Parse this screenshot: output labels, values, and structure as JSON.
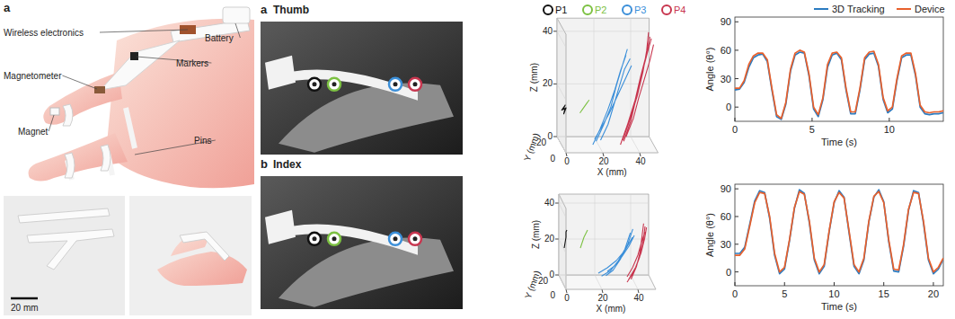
{
  "illustration": {
    "panel_label": "a",
    "labels": [
      "Wireless electronics",
      "Battery",
      "Markers",
      "Magnetometer",
      "Magnet",
      "Pins"
    ],
    "scale_bar": "20 mm"
  },
  "photos": [
    {
      "panel_label": "a",
      "title": "Thumb"
    },
    {
      "panel_label": "b",
      "title": "Index"
    }
  ],
  "chart_data": [
    {
      "type": "line3d",
      "xlabel": "X (mm)",
      "ylabel": "Y (mm)",
      "zlabel": "Z (mm)",
      "xlim": [
        0,
        50
      ],
      "xticks": [
        0,
        20,
        40
      ],
      "ylim": [
        0,
        20
      ],
      "yticks": [
        0,
        20
      ],
      "zlim": [
        0,
        45
      ],
      "zticks": [
        0,
        20,
        40
      ],
      "legend": "top",
      "marker": "circle",
      "series": [
        {
          "name": "P1",
          "color": "#111111",
          "x": [
            0,
            2,
            1,
            2.5,
            1,
            2
          ],
          "y": [
            10,
            10,
            11,
            10,
            9,
            10
          ],
          "z": [
            13,
            15,
            13,
            14,
            12,
            14
          ]
        },
        {
          "name": "P2",
          "color": "#7cc142",
          "x": [
            10,
            13,
            11,
            14,
            12,
            15
          ],
          "y": [
            10,
            10,
            10,
            10,
            10,
            10
          ],
          "z": [
            12,
            15,
            13,
            16,
            14,
            17
          ]
        },
        {
          "name": "P3",
          "color": "#3b8fd9",
          "x": [
            17,
            21,
            25,
            29,
            32,
            35,
            null,
            19,
            23,
            27,
            30,
            33,
            36,
            null,
            21,
            25,
            28,
            31,
            34,
            37,
            null,
            18,
            22,
            26,
            30,
            34,
            38
          ],
          "y": [
            10,
            10,
            10,
            10,
            10,
            10,
            null,
            11,
            11,
            11,
            11,
            11,
            11,
            null,
            9,
            9,
            9,
            9,
            9,
            9,
            null,
            10,
            10,
            10,
            10,
            10,
            10
          ],
          "z": [
            0,
            6,
            13,
            21,
            28,
            34,
            null,
            1,
            7,
            14,
            22,
            29,
            36,
            null,
            2,
            8,
            15,
            22,
            29,
            33,
            null,
            2,
            7,
            12,
            18,
            24,
            30
          ]
        },
        {
          "name": "P4",
          "color": "#c8364f",
          "x": [
            32,
            36,
            40,
            43,
            46,
            48,
            null,
            34,
            38,
            41,
            44,
            47,
            49,
            null,
            33,
            37,
            41,
            44,
            46,
            47,
            null,
            35,
            39,
            42,
            45,
            48,
            50
          ],
          "y": [
            10,
            10,
            10,
            10,
            10,
            10,
            null,
            11,
            11,
            11,
            11,
            11,
            11,
            null,
            9,
            9,
            9,
            9,
            9,
            9,
            null,
            10,
            10,
            10,
            10,
            10,
            10
          ],
          "z": [
            0,
            8,
            17,
            26,
            34,
            41,
            null,
            1,
            9,
            18,
            27,
            35,
            40,
            null,
            2,
            10,
            19,
            28,
            36,
            43,
            null,
            3,
            10,
            18,
            25,
            32,
            38
          ]
        }
      ]
    },
    {
      "type": "line",
      "xlabel": "Time (s)",
      "ylabel": "Angle (θ°)",
      "xlim": [
        0,
        13.5
      ],
      "xticks": [
        0,
        5,
        10
      ],
      "ylim": [
        -15,
        95
      ],
      "yticks": [
        0,
        30,
        60,
        90
      ],
      "legend": "top",
      "x": [
        0,
        0.3,
        0.6,
        0.9,
        1.2,
        1.5,
        1.8,
        2.1,
        2.4,
        2.7,
        3,
        3.3,
        3.6,
        3.9,
        4.2,
        4.5,
        4.8,
        5.1,
        5.4,
        5.7,
        6,
        6.3,
        6.6,
        6.9,
        7.2,
        7.5,
        7.8,
        8.1,
        8.4,
        8.7,
        9,
        9.3,
        9.6,
        9.9,
        10.2,
        10.5,
        10.8,
        11.1,
        11.4,
        11.7,
        12,
        12.3,
        12.6,
        12.9,
        13.2,
        13.5
      ],
      "series": [
        {
          "name": "3D Tracking",
          "color": "#2b7bc0",
          "values": [
            18,
            19,
            26,
            42,
            52,
            55,
            56,
            48,
            18,
            -10,
            -13,
            3,
            38,
            55,
            58,
            57,
            33,
            -2,
            -10,
            8,
            42,
            55,
            57,
            50,
            18,
            -7,
            -7,
            18,
            50,
            56,
            57,
            43,
            8,
            -6,
            -2,
            28,
            52,
            55,
            55,
            33,
            0,
            -7,
            -8,
            -7,
            -7,
            -6
          ]
        },
        {
          "name": "Device",
          "color": "#e8602c",
          "values": [
            20,
            20,
            28,
            45,
            54,
            57,
            57,
            50,
            20,
            -8,
            -12,
            5,
            40,
            57,
            60,
            58,
            35,
            0,
            -8,
            10,
            45,
            57,
            58,
            52,
            20,
            -5,
            -5,
            20,
            52,
            58,
            59,
            45,
            10,
            -4,
            0,
            30,
            54,
            57,
            57,
            35,
            2,
            -5,
            -6,
            -5,
            -5,
            -4
          ]
        }
      ]
    },
    {
      "type": "line3d",
      "xlabel": "X (mm)",
      "ylabel": "Y (mm)",
      "zlabel": "Z (mm)",
      "xlim": [
        0,
        50
      ],
      "xticks": [
        0,
        20,
        40
      ],
      "ylim": [
        0,
        20
      ],
      "yticks": [
        0,
        20
      ],
      "zlim": [
        0,
        45
      ],
      "zticks": [
        0,
        20,
        40
      ],
      "series": [
        {
          "color": "#111111",
          "x": [
            1,
            1.5,
            2,
            2,
            2.5
          ],
          "y": [
            10,
            10,
            10,
            10,
            10
          ],
          "z": [
            19,
            22,
            25,
            28,
            29
          ]
        },
        {
          "color": "#7cc142",
          "x": [
            10,
            11,
            12,
            13,
            14
          ],
          "y": [
            10,
            10,
            10,
            10,
            10
          ],
          "z": [
            19,
            22,
            25,
            27,
            29
          ]
        },
        {
          "color": "#3b8fd9",
          "x": [
            20,
            25,
            30,
            35,
            39,
            null,
            22,
            27,
            31,
            35,
            38,
            null,
            24,
            28,
            32,
            36,
            39,
            null,
            25,
            29,
            33,
            37,
            40
          ],
          "y": [
            10,
            10,
            10,
            10,
            10,
            null,
            11,
            11,
            11,
            11,
            11,
            null,
            9,
            9,
            9,
            9,
            9,
            null,
            10,
            10,
            10,
            10,
            10
          ],
          "z": [
            5,
            8,
            12,
            18,
            25,
            null,
            3,
            6,
            11,
            18,
            27,
            null,
            4,
            7,
            13,
            21,
            30,
            null,
            6,
            9,
            14,
            20,
            26
          ]
        },
        {
          "color": "#c8364f",
          "x": [
            36,
            40,
            43,
            45,
            46,
            null,
            37,
            41,
            44,
            46,
            47,
            null,
            38,
            41,
            43,
            44,
            45,
            null,
            36,
            39,
            42,
            44,
            46
          ],
          "y": [
            10,
            10,
            10,
            10,
            10,
            null,
            11,
            11,
            11,
            11,
            11,
            null,
            9,
            9,
            9,
            9,
            9,
            null,
            10,
            10,
            10,
            10,
            10
          ],
          "z": [
            0,
            6,
            14,
            23,
            31,
            null,
            1,
            8,
            16,
            24,
            30,
            null,
            2,
            9,
            17,
            25,
            33,
            null,
            3,
            8,
            15,
            22,
            28
          ]
        }
      ]
    },
    {
      "type": "line",
      "xlabel": "Time (s)",
      "ylabel": "Angle (θ°)",
      "xlim": [
        0,
        21
      ],
      "xticks": [
        0,
        5,
        10,
        15,
        20
      ],
      "ylim": [
        -15,
        95
      ],
      "yticks": [
        0,
        30,
        60,
        90
      ],
      "x": [
        0,
        0.5,
        1,
        1.5,
        2,
        2.5,
        3,
        3.5,
        4,
        4.5,
        5,
        5.5,
        6,
        6.5,
        7,
        7.5,
        8,
        8.5,
        9,
        9.5,
        10,
        10.5,
        11,
        11.5,
        12,
        12.5,
        13,
        13.5,
        14,
        14.5,
        15,
        15.5,
        16,
        16.5,
        17,
        17.5,
        18,
        18.5,
        19,
        19.5,
        20,
        20.5,
        21
      ],
      "series": [
        {
          "color": "#2b7bc0",
          "values": [
            20,
            20,
            27,
            52,
            77,
            88,
            86,
            58,
            18,
            -2,
            3,
            34,
            69,
            89,
            85,
            53,
            13,
            -2,
            6,
            44,
            75,
            88,
            81,
            43,
            6,
            -2,
            13,
            54,
            81,
            89,
            76,
            33,
            1,
            0,
            28,
            67,
            88,
            86,
            53,
            13,
            -2,
            3,
            14
          ]
        },
        {
          "color": "#e8602c",
          "values": [
            18,
            18,
            25,
            50,
            75,
            86,
            85,
            60,
            20,
            0,
            5,
            35,
            70,
            87,
            84,
            55,
            15,
            0,
            8,
            45,
            76,
            86,
            80,
            45,
            8,
            0,
            15,
            55,
            82,
            87,
            75,
            35,
            3,
            2,
            30,
            68,
            86,
            85,
            55,
            15,
            0,
            5,
            15
          ]
        }
      ]
    }
  ]
}
